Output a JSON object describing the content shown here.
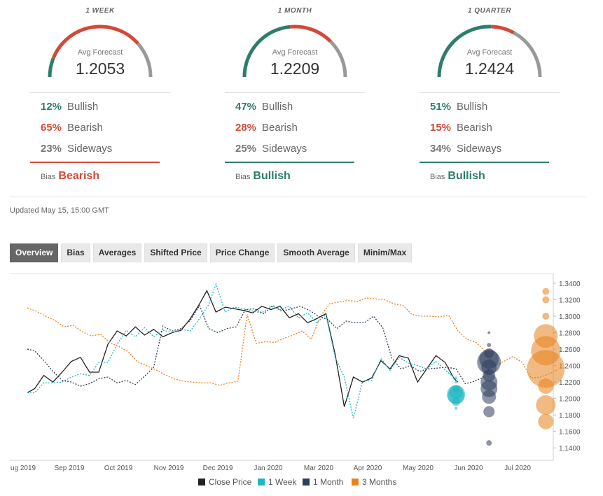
{
  "periods": [
    {
      "title": "1 WEEK",
      "avg_label": "Avg Forecast",
      "avg": "1.2053",
      "bullish_pct": "12%",
      "bearish_pct": "65%",
      "sideways_pct": "23%",
      "bullish_label": "Bullish",
      "bearish_label": "Bearish",
      "sideways_label": "Sideways",
      "bias_label": "Bias",
      "bias": "Bearish",
      "bias_color": "#d04a3a",
      "bullish": 12,
      "bearish": 65,
      "sideways": 23
    },
    {
      "title": "1 MONTH",
      "avg_label": "Avg Forecast",
      "avg": "1.2209",
      "bullish_pct": "47%",
      "bearish_pct": "28%",
      "sideways_pct": "25%",
      "bullish_label": "Bullish",
      "bearish_label": "Bearish",
      "sideways_label": "Sideways",
      "bias_label": "Bias",
      "bias": "Bullish",
      "bias_color": "#2e7d6b",
      "bullish": 47,
      "bearish": 28,
      "sideways": 25
    },
    {
      "title": "1 QUARTER",
      "avg_label": "Avg Forecast",
      "avg": "1.2424",
      "bullish_pct": "51%",
      "bearish_pct": "15%",
      "sideways_pct": "34%",
      "bullish_label": "Bullish",
      "bearish_label": "Bearish",
      "sideways_label": "Sideways",
      "bias_label": "Bias",
      "bias": "Bullish",
      "bias_color": "#2e7d6b",
      "bullish": 51,
      "bearish": 15,
      "sideways": 34
    }
  ],
  "colors": {
    "bullish": "#2e7d6b",
    "bearish": "#d04a3a",
    "sideways": "#999999"
  },
  "updated": "Updated May 15, 15:00 GMT",
  "tabs": [
    "Overview",
    "Bias",
    "Averages",
    "Shifted Price",
    "Price Change",
    "Smooth Average",
    "Minim/Max"
  ],
  "active_tab": "Overview",
  "chart_data": {
    "type": "line",
    "x_ticks": [
      "ug 2019",
      "Sep 2019",
      "Oct 2019",
      "Nov 2019",
      "Dec 2019",
      "Jan 2020",
      "Mar 2020",
      "Apr 2020",
      "May 2020",
      "Jun 2020",
      "Jul 2020"
    ],
    "y_ticks": [
      "1.3400",
      "1.3200",
      "1.3000",
      "1.2800",
      "1.2600",
      "1.2400",
      "1.2200",
      "1.2000",
      "1.1800",
      "1.1600",
      "1.1400"
    ],
    "ylim": [
      1.13,
      1.345
    ],
    "series": [
      {
        "name": "Close Price",
        "color": "#222222",
        "dash": false,
        "points": [
          [
            0,
            1.207
          ],
          [
            4,
            1.212
          ],
          [
            9,
            1.228
          ],
          [
            14,
            1.22
          ],
          [
            19,
            1.232
          ],
          [
            24,
            1.245
          ],
          [
            29,
            1.25
          ],
          [
            34,
            1.232
          ],
          [
            39,
            1.232
          ],
          [
            44,
            1.266
          ],
          [
            49,
            1.282
          ],
          [
            54,
            1.276
          ],
          [
            59,
            1.287
          ],
          [
            64,
            1.277
          ],
          [
            69,
            1.284
          ],
          [
            74,
            1.275
          ],
          [
            79,
            1.28
          ],
          [
            84,
            1.283
          ],
          [
            89,
            1.297
          ],
          [
            94,
            1.315
          ],
          [
            98,
            1.331
          ],
          [
            103,
            1.305
          ],
          [
            108,
            1.311
          ],
          [
            113,
            1.309
          ],
          [
            118,
            1.307
          ],
          [
            123,
            1.304
          ],
          [
            128,
            1.312
          ],
          [
            133,
            1.308
          ],
          [
            138,
            1.312
          ],
          [
            143,
            1.298
          ],
          [
            148,
            1.303
          ],
          [
            153,
            1.292
          ],
          [
            158,
            1.297
          ],
          [
            163,
            1.303
          ],
          [
            168,
            1.254
          ],
          [
            173,
            1.19
          ],
          [
            178,
            1.226
          ],
          [
            183,
            1.22
          ],
          [
            188,
            1.225
          ],
          [
            193,
            1.246
          ],
          [
            198,
            1.236
          ],
          [
            203,
            1.252
          ],
          [
            208,
            1.249
          ],
          [
            213,
            1.22
          ],
          [
            218,
            1.236
          ],
          [
            223,
            1.252
          ],
          [
            228,
            1.244
          ],
          [
            233,
            1.224
          ],
          [
            235,
            1.22
          ]
        ]
      },
      {
        "name": "1 Week",
        "color": "#1bb7c2",
        "dash": true,
        "points": [
          [
            0,
            1.207
          ],
          [
            4,
            1.207
          ],
          [
            9,
            1.219
          ],
          [
            14,
            1.219
          ],
          [
            19,
            1.22
          ],
          [
            24,
            1.226
          ],
          [
            29,
            1.23
          ],
          [
            34,
            1.228
          ],
          [
            39,
            1.244
          ],
          [
            44,
            1.244
          ],
          [
            49,
            1.266
          ],
          [
            54,
            1.283
          ],
          [
            59,
            1.275
          ],
          [
            64,
            1.286
          ],
          [
            69,
            1.275
          ],
          [
            74,
            1.283
          ],
          [
            79,
            1.28
          ],
          [
            84,
            1.284
          ],
          [
            89,
            1.282
          ],
          [
            94,
            1.297
          ],
          [
            99,
            1.314
          ],
          [
            103,
            1.339
          ],
          [
            108,
            1.305
          ],
          [
            113,
            1.311
          ],
          [
            118,
            1.309
          ],
          [
            123,
            1.306
          ],
          [
            128,
            1.304
          ],
          [
            133,
            1.312
          ],
          [
            138,
            1.308
          ],
          [
            143,
            1.312
          ],
          [
            148,
            1.298
          ],
          [
            153,
            1.304
          ],
          [
            158,
            1.292
          ],
          [
            163,
            1.302
          ],
          [
            168,
            1.25
          ],
          [
            173,
            1.226
          ],
          [
            178,
            1.176
          ],
          [
            183,
            1.221
          ],
          [
            188,
            1.222
          ],
          [
            193,
            1.249
          ],
          [
            198,
            1.234
          ],
          [
            203,
            1.25
          ],
          [
            208,
            1.243
          ],
          [
            213,
            1.24
          ],
          [
            218,
            1.236
          ],
          [
            223,
            1.245
          ],
          [
            228,
            1.235
          ],
          [
            233,
            1.225
          ],
          [
            235,
            1.22
          ]
        ]
      },
      {
        "name": "1 Month",
        "color": "#2e3e5c",
        "dash": true,
        "points": [
          [
            0,
            1.26
          ],
          [
            4,
            1.258
          ],
          [
            9,
            1.246
          ],
          [
            14,
            1.233
          ],
          [
            19,
            1.222
          ],
          [
            24,
            1.22
          ],
          [
            29,
            1.215
          ],
          [
            34,
            1.218
          ],
          [
            39,
            1.224
          ],
          [
            44,
            1.226
          ],
          [
            49,
            1.219
          ],
          [
            54,
            1.222
          ],
          [
            59,
            1.217
          ],
          [
            64,
            1.227
          ],
          [
            69,
            1.238
          ],
          [
            74,
            1.288
          ],
          [
            79,
            1.282
          ],
          [
            84,
            1.285
          ],
          [
            89,
            1.295
          ],
          [
            94,
            1.313
          ],
          [
            99,
            1.285
          ],
          [
            104,
            1.28
          ],
          [
            109,
            1.285
          ],
          [
            114,
            1.287
          ],
          [
            119,
            1.308
          ],
          [
            124,
            1.309
          ],
          [
            129,
            1.303
          ],
          [
            134,
            1.313
          ],
          [
            139,
            1.306
          ],
          [
            144,
            1.309
          ],
          [
            149,
            1.312
          ],
          [
            154,
            1.307
          ],
          [
            159,
            1.3
          ],
          [
            164,
            1.296
          ],
          [
            169,
            1.285
          ],
          [
            174,
            1.294
          ],
          [
            179,
            1.292
          ],
          [
            184,
            1.292
          ],
          [
            189,
            1.3
          ],
          [
            194,
            1.286
          ],
          [
            199,
            1.249
          ],
          [
            204,
            1.236
          ],
          [
            209,
            1.24
          ],
          [
            214,
            1.233
          ],
          [
            219,
            1.236
          ],
          [
            224,
            1.237
          ],
          [
            229,
            1.238
          ],
          [
            234,
            1.236
          ],
          [
            239,
            1.218
          ],
          [
            243,
            1.22
          ],
          [
            248,
            1.225
          ],
          [
            252,
            1.235
          ]
        ]
      },
      {
        "name": "3 Months",
        "color": "#e8821e",
        "dash": true,
        "points": [
          [
            0,
            1.31
          ],
          [
            5,
            1.306
          ],
          [
            10,
            1.3
          ],
          [
            15,
            1.295
          ],
          [
            20,
            1.287
          ],
          [
            25,
            1.289
          ],
          [
            30,
            1.281
          ],
          [
            35,
            1.276
          ],
          [
            40,
            1.278
          ],
          [
            45,
            1.268
          ],
          [
            50,
            1.263
          ],
          [
            55,
            1.257
          ],
          [
            60,
            1.245
          ],
          [
            65,
            1.24
          ],
          [
            70,
            1.235
          ],
          [
            75,
            1.229
          ],
          [
            80,
            1.224
          ],
          [
            85,
            1.221
          ],
          [
            90,
            1.22
          ],
          [
            95,
            1.219
          ],
          [
            100,
            1.219
          ],
          [
            105,
            1.216
          ],
          [
            110,
            1.219
          ],
          [
            115,
            1.221
          ],
          [
            120,
            1.302
          ],
          [
            125,
            1.267
          ],
          [
            130,
            1.269
          ],
          [
            135,
            1.268
          ],
          [
            140,
            1.273
          ],
          [
            145,
            1.277
          ],
          [
            150,
            1.282
          ],
          [
            155,
            1.272
          ],
          [
            160,
            1.3
          ],
          [
            165,
            1.315
          ],
          [
            170,
            1.317
          ],
          [
            175,
            1.319
          ],
          [
            180,
            1.318
          ],
          [
            185,
            1.322
          ],
          [
            190,
            1.321
          ],
          [
            195,
            1.32
          ],
          [
            200,
            1.315
          ],
          [
            205,
            1.313
          ],
          [
            210,
            1.302
          ],
          [
            215,
            1.3
          ],
          [
            220,
            1.3
          ],
          [
            225,
            1.299
          ],
          [
            230,
            1.301
          ],
          [
            235,
            1.282
          ],
          [
            240,
            1.272
          ],
          [
            245,
            1.268
          ],
          [
            250,
            1.257
          ],
          [
            255,
            1.239
          ],
          [
            260,
            1.245
          ],
          [
            265,
            1.251
          ],
          [
            270,
            1.244
          ],
          [
            275,
            1.225
          ],
          [
            280,
            1.226
          ],
          [
            285,
            1.23
          ],
          [
            290,
            1.236
          ]
        ]
      }
    ],
    "bubbles": [
      {
        "series": "1 Week",
        "color": "#1bb7c2",
        "points": [
          [
            234,
            1.225,
            2
          ],
          [
            234,
            1.22,
            2
          ],
          [
            234,
            1.212,
            5
          ],
          [
            234,
            1.208,
            10
          ],
          [
            234,
            1.205,
            13
          ],
          [
            234,
            1.203,
            12
          ],
          [
            234,
            1.196,
            6
          ],
          [
            234,
            1.188,
            2
          ]
        ]
      },
      {
        "series": "1 Month",
        "color": "#2e3e5c",
        "points": [
          [
            252,
            1.28,
            2
          ],
          [
            252,
            1.265,
            3
          ],
          [
            252,
            1.255,
            7
          ],
          [
            252,
            1.248,
            14
          ],
          [
            252,
            1.244,
            17
          ],
          [
            252,
            1.238,
            11
          ],
          [
            252,
            1.228,
            9
          ],
          [
            252,
            1.22,
            12
          ],
          [
            252,
            1.212,
            12
          ],
          [
            252,
            1.202,
            10
          ],
          [
            252,
            1.184,
            8
          ],
          [
            252,
            1.146,
            4
          ]
        ]
      },
      {
        "series": "3 Months",
        "color": "#e8821e",
        "points": [
          [
            283,
            1.33,
            5
          ],
          [
            283,
            1.32,
            5
          ],
          [
            283,
            1.3,
            5
          ],
          [
            283,
            1.276,
            17
          ],
          [
            283,
            1.258,
            21
          ],
          [
            283,
            1.236,
            27
          ],
          [
            283,
            1.215,
            11
          ],
          [
            283,
            1.192,
            14
          ],
          [
            283,
            1.172,
            11
          ]
        ]
      }
    ],
    "legend": [
      "Close Price",
      "1 Week",
      "1 Month",
      "3 Months"
    ],
    "legend_placement": "bottom",
    "grid": true
  }
}
